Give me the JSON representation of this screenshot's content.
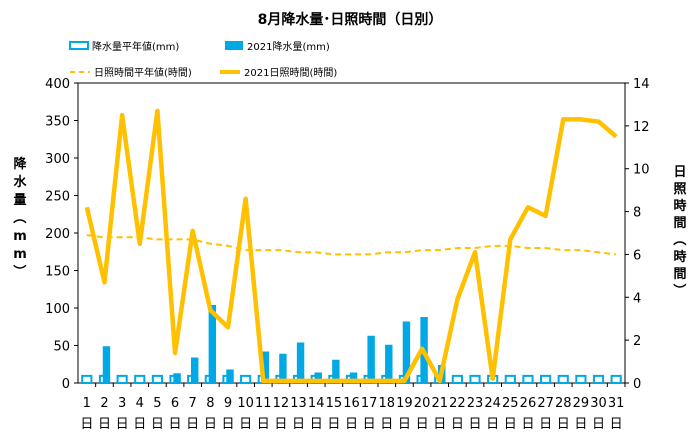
{
  "chart_data": {
    "type": "bar",
    "title": "8月降水量･日照時間（日別）",
    "ylabel_left": "降水量（mm）",
    "ylabel_right": "日照時間（時間）",
    "ylim_left": [
      0,
      400
    ],
    "ylim_right": [
      0,
      14
    ],
    "yticks_left": [
      "0",
      "50",
      "100",
      "150",
      "200",
      "250",
      "300",
      "350",
      "400"
    ],
    "yticks_right": [
      "0",
      "2",
      "4",
      "6",
      "8",
      "10",
      "12",
      "14"
    ],
    "grid": false,
    "legend_position": "top",
    "categories": [
      "1",
      "2",
      "3",
      "4",
      "5",
      "6",
      "7",
      "8",
      "9",
      "10",
      "11",
      "12",
      "13",
      "14",
      "15",
      "16",
      "17",
      "18",
      "19",
      "20",
      "21",
      "22",
      "23",
      "24",
      "25",
      "26",
      "27",
      "28",
      "29",
      "30",
      "31"
    ],
    "day_suffix": "日",
    "series": [
      {
        "name": "降水量平年値(mm)",
        "type": "bar-outline",
        "axis": "left",
        "color": "#00A9E6",
        "values": [
          9.5,
          9.5,
          9.5,
          9.5,
          9.5,
          9.5,
          9.5,
          9.5,
          9.5,
          9.5,
          9.5,
          9.5,
          9.5,
          9.5,
          9.5,
          9.5,
          9.5,
          9.5,
          9.5,
          9.5,
          9.5,
          9.5,
          9.5,
          9.5,
          9.5,
          9.5,
          9.5,
          9.5,
          9.5,
          9.5,
          9.5
        ]
      },
      {
        "name": "2021降水量(mm)",
        "type": "bar",
        "axis": "left",
        "color": "#00A9E6",
        "values": [
          0,
          49,
          0,
          0,
          0,
          13,
          34,
          104,
          18,
          0,
          42,
          39,
          54,
          14,
          31,
          14,
          63,
          51,
          82,
          88,
          24,
          0,
          0,
          0,
          0,
          0,
          0,
          0,
          0,
          0,
          0
        ]
      },
      {
        "name": "日照時間平年値(時間)",
        "type": "line-dashed",
        "axis": "right",
        "color": "#FFC000",
        "values": [
          6.9,
          6.8,
          6.8,
          6.8,
          6.7,
          6.7,
          6.7,
          6.5,
          6.4,
          6.2,
          6.2,
          6.2,
          6.1,
          6.1,
          6.0,
          6.0,
          6.0,
          6.1,
          6.1,
          6.2,
          6.2,
          6.3,
          6.3,
          6.4,
          6.4,
          6.3,
          6.3,
          6.2,
          6.2,
          6.1,
          6.0
        ]
      },
      {
        "name": "2021日照時間(時間)",
        "type": "line",
        "axis": "right",
        "color": "#FFC000",
        "values": [
          8.2,
          4.7,
          12.5,
          6.5,
          12.7,
          1.4,
          7.1,
          3.4,
          2.6,
          8.6,
          0.1,
          0.1,
          0.1,
          0.1,
          0.1,
          0.1,
          0.1,
          0.1,
          0.1,
          1.6,
          0.1,
          3.9,
          6.1,
          0.2,
          6.7,
          8.2,
          7.8,
          12.3,
          12.3,
          12.2,
          11.5
        ]
      }
    ]
  }
}
